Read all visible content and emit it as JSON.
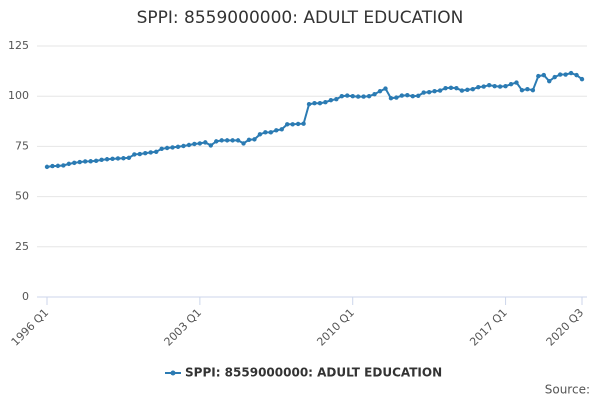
{
  "chart_data": {
    "type": "line",
    "title": "SPPI: 8559000000: ADULT EDUCATION",
    "categories": [
      "1996 Q1",
      null,
      null,
      null,
      null,
      null,
      null,
      null,
      null,
      null,
      null,
      null,
      null,
      null,
      null,
      null,
      null,
      null,
      null,
      null,
      null,
      null,
      null,
      null,
      null,
      null,
      null,
      null,
      "2003 Q1",
      null,
      null,
      null,
      null,
      null,
      null,
      null,
      null,
      null,
      null,
      null,
      null,
      null,
      null,
      null,
      null,
      null,
      null,
      null,
      null,
      null,
      null,
      null,
      null,
      null,
      null,
      null,
      "2010 Q1",
      null,
      null,
      null,
      null,
      null,
      null,
      null,
      null,
      null,
      null,
      null,
      null,
      null,
      null,
      null,
      null,
      null,
      null,
      null,
      null,
      null,
      null,
      null,
      null,
      null,
      null,
      null,
      "2017 Q1",
      null,
      null,
      null,
      null,
      null,
      null,
      null,
      null,
      null,
      null,
      null,
      null,
      null,
      "2020 Q3"
    ],
    "series": [
      {
        "name": "SPPI: 8559000000: ADULT EDUCATION",
        "color": "#2b7bb3",
        "values": [
          64.8,
          65.2,
          65.3,
          65.5,
          66.3,
          66.8,
          67.2,
          67.5,
          67.6,
          67.8,
          68.3,
          68.6,
          68.8,
          69.0,
          69.1,
          69.3,
          71.0,
          71.2,
          71.6,
          72.0,
          72.3,
          73.8,
          74.2,
          74.5,
          74.8,
          75.2,
          75.7,
          76.2,
          76.5,
          77.0,
          75.5,
          77.5,
          78.0,
          78.0,
          78.0,
          78.0,
          76.5,
          78.3,
          78.5,
          81.0,
          82.0,
          82.0,
          83.0,
          83.5,
          86.0,
          86.0,
          86.2,
          86.3,
          96.0,
          96.5,
          96.5,
          97.0,
          98.0,
          98.5,
          100.0,
          100.3,
          100.0,
          99.8,
          99.8,
          100.0,
          101.0,
          102.5,
          103.8,
          99.0,
          99.3,
          100.3,
          100.5,
          100.0,
          100.2,
          101.8,
          102.0,
          102.5,
          102.8,
          104.0,
          104.2,
          104.0,
          102.8,
          103.2,
          103.5,
          104.5,
          104.8,
          105.5,
          105.0,
          104.8,
          105.0,
          106.0,
          106.8,
          103.0,
          103.5,
          103.0,
          110.0,
          110.5,
          107.5,
          109.5,
          110.8,
          110.8,
          111.5,
          110.5,
          108.5
        ]
      }
    ],
    "ylim": [
      0,
      125
    ],
    "yticks": [
      0,
      25,
      50,
      75,
      100,
      125
    ],
    "grid": true,
    "legend": "bottom",
    "source": "Source:"
  }
}
